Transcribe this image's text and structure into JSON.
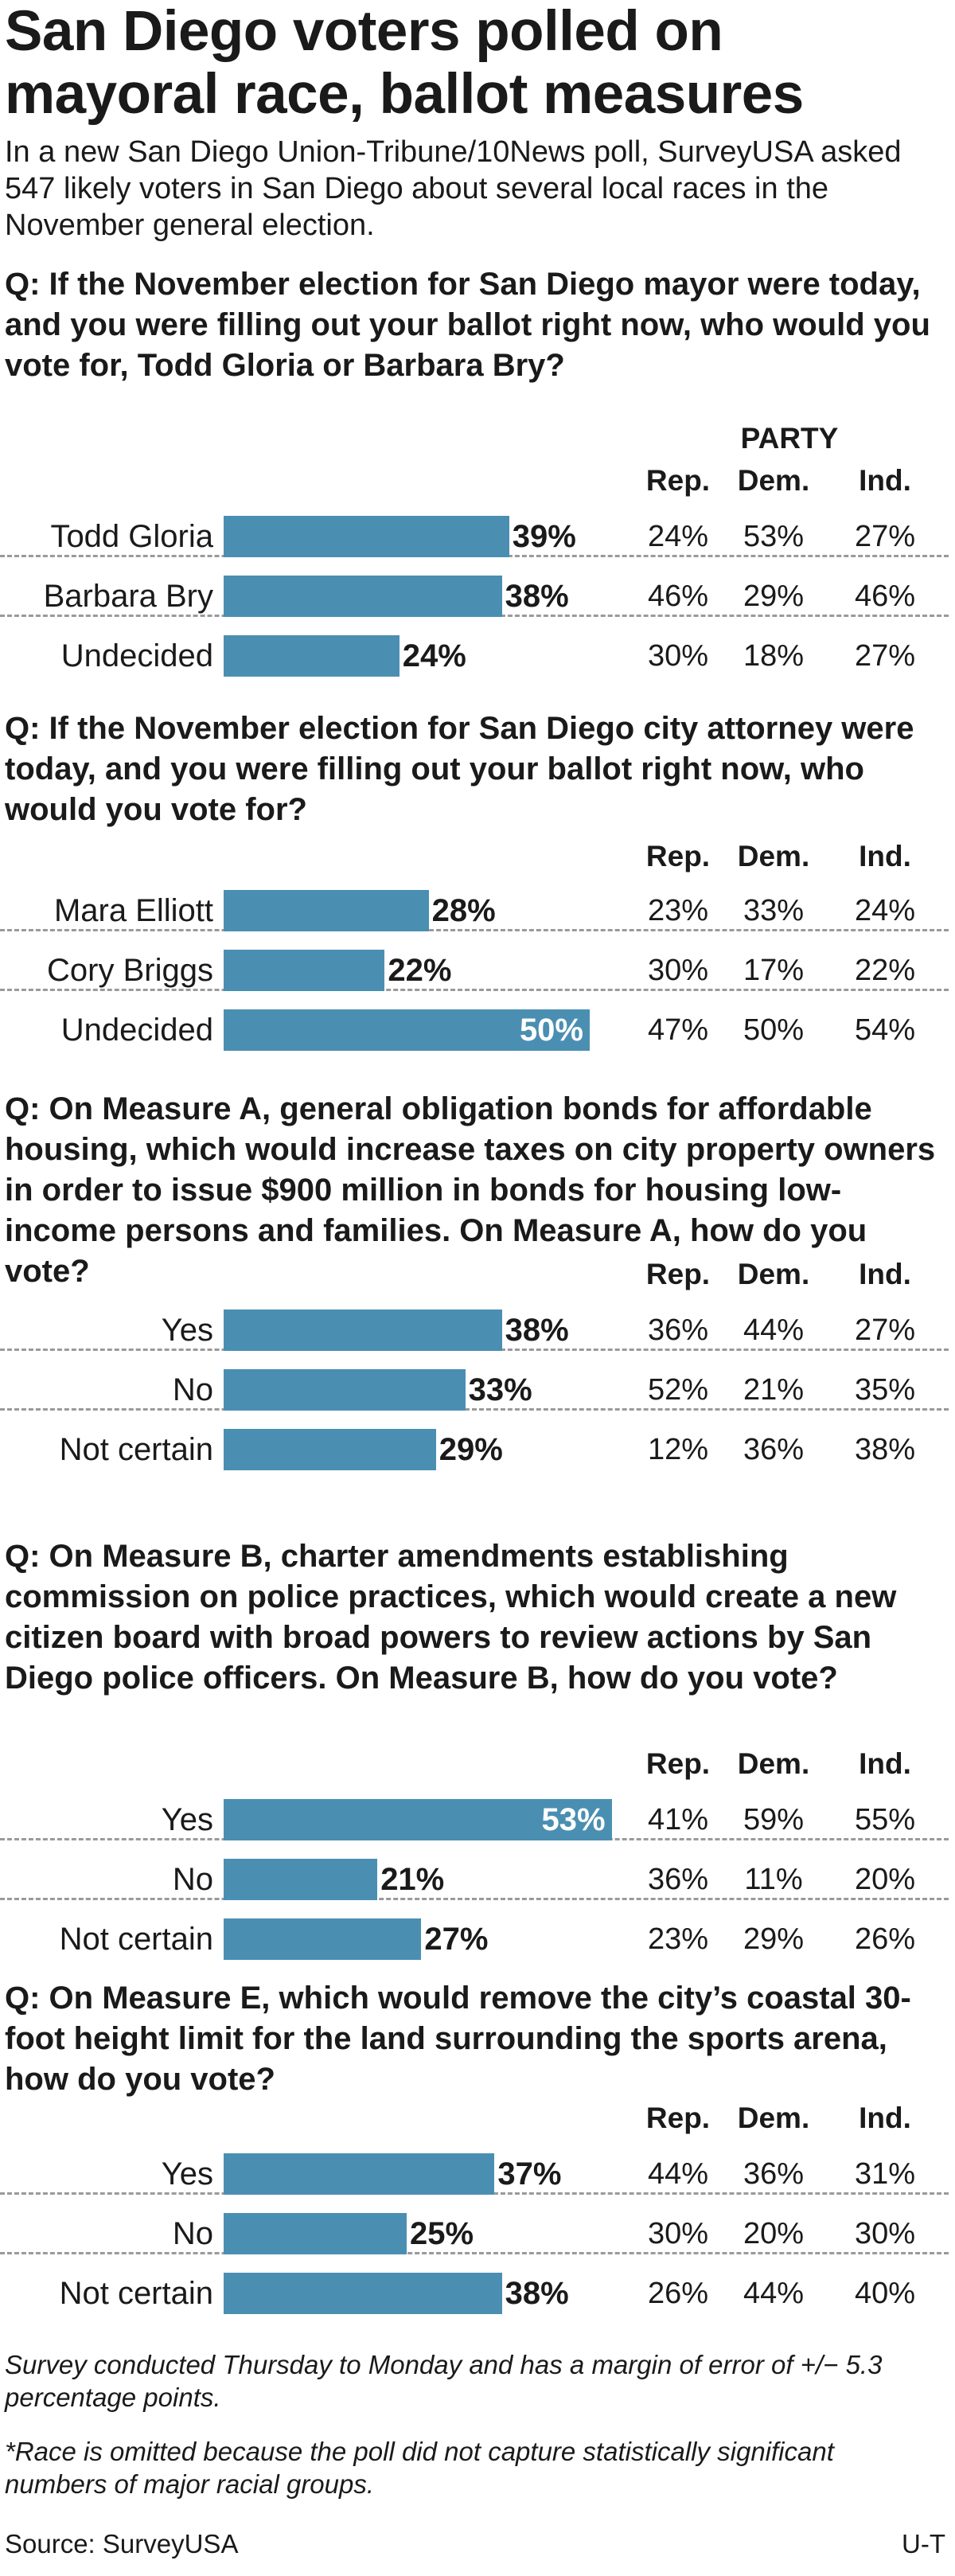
{
  "title": "San Diego voters polled on mayoral race, ballot measures",
  "dek": "In a new San Diego Union-Tribune/10News poll, SurveyUSA asked 547 likely voters in San Diego about several local races in the November general election.",
  "party_label": "PARTY",
  "footnotes": {
    "survey_note": "Survey conducted Thursday to Monday and has a margin of error of +/− 5.3 percentage points.",
    "race_note": "*Race is omitted because the poll did not capture statistically significant numbers of major racial groups.",
    "source": "Source: SurveyUSA",
    "credit": "U-T"
  },
  "colors": {
    "bar": "#4a8fb2",
    "text": "#1a1a1a",
    "divider": "#9a9a9a"
  },
  "chart_data": [
    {
      "type": "bar",
      "title": "Q: If the November election for San Diego mayor were today, and you were filling out your ballot right now, who would you vote for, Todd Gloria or Barbara Bry?",
      "unit": "%",
      "xlim": [
        0,
        100
      ],
      "party_columns": [
        "Rep.",
        "Dem.",
        "Ind."
      ],
      "categories": [
        "Todd Gloria",
        "Barbara Bry",
        "Undecided"
      ],
      "values": [
        39,
        38,
        24
      ],
      "value_labels": [
        "39%",
        "38%",
        "24%"
      ],
      "party_breakdown": [
        [
          "24%",
          "53%",
          "27%"
        ],
        [
          "46%",
          "29%",
          "46%"
        ],
        [
          "30%",
          "18%",
          "27%"
        ]
      ]
    },
    {
      "type": "bar",
      "title": "Q: If the November election for San Diego city attorney were today, and you were filling out your ballot right now, who would you vote for?",
      "unit": "%",
      "xlim": [
        0,
        100
      ],
      "party_columns": [
        "Rep.",
        "Dem.",
        "Ind."
      ],
      "categories": [
        "Mara Elliott",
        "Cory Briggs",
        "Undecided"
      ],
      "values": [
        28,
        22,
        50
      ],
      "value_labels": [
        "28%",
        "22%",
        "50%"
      ],
      "party_breakdown": [
        [
          "23%",
          "33%",
          "24%"
        ],
        [
          "30%",
          "17%",
          "22%"
        ],
        [
          "47%",
          "50%",
          "54%"
        ]
      ]
    },
    {
      "type": "bar",
      "title": "Q: On Measure A, general obligation bonds for affordable housing, which would increase taxes on city property owners in order to issue $900 million in bonds for housing low-income persons and families. On Measure A, how do you vote?",
      "unit": "%",
      "xlim": [
        0,
        100
      ],
      "party_columns": [
        "Rep.",
        "Dem.",
        "Ind."
      ],
      "categories": [
        "Yes",
        "No",
        "Not certain"
      ],
      "values": [
        38,
        33,
        29
      ],
      "value_labels": [
        "38%",
        "33%",
        "29%"
      ],
      "party_breakdown": [
        [
          "36%",
          "44%",
          "27%"
        ],
        [
          "52%",
          "21%",
          "35%"
        ],
        [
          "12%",
          "36%",
          "38%"
        ]
      ]
    },
    {
      "type": "bar",
      "title": "Q: On Measure B, charter amendments establishing commission on police practices, which would create a new citizen board with broad powers to review actions by San Diego police officers. On Measure B, how do you vote?",
      "unit": "%",
      "xlim": [
        0,
        100
      ],
      "party_columns": [
        "Rep.",
        "Dem.",
        "Ind."
      ],
      "categories": [
        "Yes",
        "No",
        "Not certain"
      ],
      "values": [
        53,
        21,
        27
      ],
      "value_labels": [
        "53%",
        "21%",
        "27%"
      ],
      "party_breakdown": [
        [
          "41%",
          "59%",
          "55%"
        ],
        [
          "36%",
          "11%",
          "20%"
        ],
        [
          "23%",
          "29%",
          "26%"
        ]
      ]
    },
    {
      "type": "bar",
      "title": "Q: On Measure E, which would remove the city’s coastal 30-foot height limit for the land surrounding the sports arena, how do you vote?",
      "unit": "%",
      "xlim": [
        0,
        100
      ],
      "party_columns": [
        "Rep.",
        "Dem.",
        "Ind."
      ],
      "categories": [
        "Yes",
        "No",
        "Not certain"
      ],
      "values": [
        37,
        25,
        38
      ],
      "value_labels": [
        "37%",
        "25%",
        "38%"
      ],
      "party_breakdown": [
        [
          "44%",
          "36%",
          "31%"
        ],
        [
          "30%",
          "20%",
          "30%"
        ],
        [
          "26%",
          "44%",
          "40%"
        ]
      ]
    }
  ]
}
